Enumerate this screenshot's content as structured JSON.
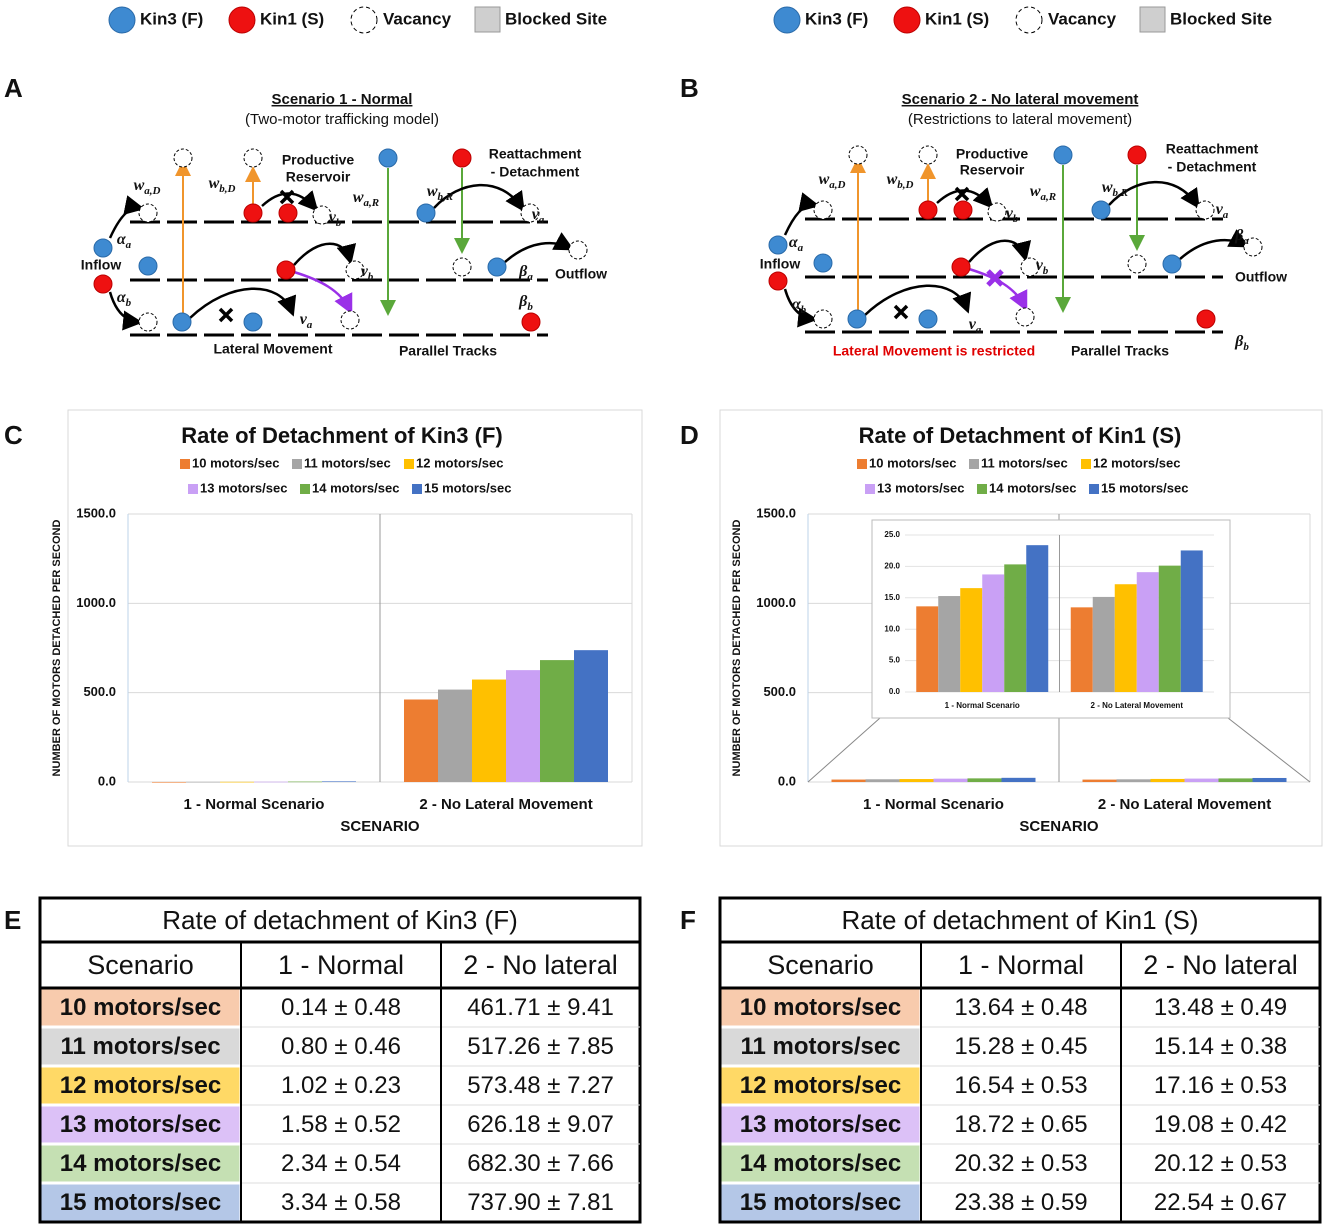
{
  "legend": {
    "items": [
      "Kin3 (F)",
      "Kin1 (S)",
      "Vacancy",
      "Blocked Site"
    ]
  },
  "panels": [
    "A",
    "B",
    "C",
    "D",
    "E",
    "F"
  ],
  "diagrams": [
    {
      "title": "Scenario 1 - Normal",
      "subtitle": "(Two-motor trafficking model)",
      "labels": [
        {
          "text": "w",
          "sub": "a,D"
        },
        {
          "text": "w",
          "sub": "b,D"
        },
        "Productive",
        "Reservoir",
        {
          "text": "v",
          "sub": "b"
        },
        {
          "text": "w",
          "sub": "a,R"
        },
        {
          "text": "w",
          "sub": "b,R"
        },
        "Reattachment",
        "- Detachment",
        {
          "text": "v",
          "sub": "a"
        },
        {
          "text": "α",
          "sub": "a"
        },
        "Inflow",
        {
          "text": "v",
          "sub": "b"
        },
        {
          "text": "β",
          "sub": "a"
        },
        "Outflow",
        {
          "text": "α",
          "sub": "b"
        },
        {
          "text": "β",
          "sub": "b"
        },
        {
          "text": "v",
          "sub": "a"
        },
        "Lateral Movement",
        "Parallel Tracks"
      ]
    },
    {
      "title": "Scenario 2 - No lateral movement",
      "subtitle": "(Restrictions to lateral movement)",
      "labels": [
        {
          "text": "w",
          "sub": "a,D"
        },
        {
          "text": "w",
          "sub": "b,D"
        },
        "Productive",
        "Reservoir",
        {
          "text": "v",
          "sub": "b"
        },
        {
          "text": "w",
          "sub": "a,R"
        },
        {
          "text": "w",
          "sub": "b,R"
        },
        "Reattachment",
        "- Detachment",
        {
          "text": "v",
          "sub": "a"
        },
        {
          "text": "α",
          "sub": "a"
        },
        "Inflow",
        {
          "text": "v",
          "sub": "b"
        },
        {
          "text": "β",
          "sub": "a"
        },
        "Outflow",
        {
          "text": "α",
          "sub": "b"
        },
        {
          "text": "β",
          "sub": "b"
        },
        {
          "text": "v",
          "sub": "a"
        },
        "Lateral Movement is restricted",
        "Parallel Tracks"
      ]
    }
  ],
  "chart_data": [
    {
      "type": "bar",
      "title": "Rate of Detachment of Kin3 (F)",
      "ylabel": "NUMBER OF MOTORS DETACHED PER SECOND",
      "xlabel": "SCENARIO",
      "categories": [
        "1 - Normal Scenario",
        "2 - No Lateral Movement"
      ],
      "series": [
        {
          "name": "10 motors/sec",
          "color": "#ed7d31",
          "values": [
            0.14,
            461.71
          ]
        },
        {
          "name": "11 motors/sec",
          "color": "#a5a5a5",
          "values": [
            0.8,
            517.26
          ]
        },
        {
          "name": "12 motors/sec",
          "color": "#ffc000",
          "values": [
            1.02,
            573.48
          ]
        },
        {
          "name": "13 motors/sec",
          "color": "#c9a0f5",
          "values": [
            1.58,
            626.18
          ]
        },
        {
          "name": "14 motors/sec",
          "color": "#70ad47",
          "values": [
            2.34,
            682.3
          ]
        },
        {
          "name": "15 motors/sec",
          "color": "#4472c4",
          "values": [
            3.34,
            737.9
          ]
        }
      ],
      "ylim": [
        0,
        1500
      ],
      "yticks": [
        {
          "value": 0,
          "label": "0.0"
        },
        {
          "value": 500,
          "label": "500.0"
        },
        {
          "value": 1000,
          "label": "1000.0"
        },
        {
          "value": 1500,
          "label": "1500.0"
        }
      ],
      "grid": true
    },
    {
      "type": "bar",
      "title": "Rate of Detachment of Kin1 (S)",
      "ylabel": "NUMBER OF MOTORS DETACHED PER SECOND",
      "xlabel": "SCENARIO",
      "categories": [
        "1 - Normal Scenario",
        "2 - No Lateral Movement"
      ],
      "series": [
        {
          "name": "10 motors/sec",
          "color": "#ed7d31",
          "values": [
            13.64,
            13.48
          ]
        },
        {
          "name": "11 motors/sec",
          "color": "#a5a5a5",
          "values": [
            15.28,
            15.14
          ]
        },
        {
          "name": "12 motors/sec",
          "color": "#ffc000",
          "values": [
            16.54,
            17.16
          ]
        },
        {
          "name": "13 motors/sec",
          "color": "#c9a0f5",
          "values": [
            18.72,
            19.08
          ]
        },
        {
          "name": "14 motors/sec",
          "color": "#70ad47",
          "values": [
            20.32,
            20.12
          ]
        },
        {
          "name": "15 motors/sec",
          "color": "#4472c4",
          "values": [
            23.38,
            22.54
          ]
        }
      ],
      "ylim": [
        0,
        1500
      ],
      "yticks": [
        {
          "value": 0,
          "label": "0.0"
        },
        {
          "value": 500,
          "label": "500.0"
        },
        {
          "value": 1000,
          "label": "1000.0"
        },
        {
          "value": 1500,
          "label": "1500.0"
        }
      ],
      "grid": true,
      "inset": {
        "ylim": [
          0,
          25
        ],
        "yticks": [
          {
            "value": 0,
            "label": "0.0"
          },
          {
            "value": 5,
            "label": "5.0"
          },
          {
            "value": 10,
            "label": "10.0"
          },
          {
            "value": 15,
            "label": "15.0"
          },
          {
            "value": 20,
            "label": "20.0"
          },
          {
            "value": 25,
            "label": "25.0"
          }
        ]
      }
    }
  ],
  "tables": [
    {
      "title": "Rate of detachment of Kin3 (F)",
      "header": [
        "Scenario",
        "1 - Normal",
        "2 - No lateral"
      ],
      "rows": [
        [
          "10 motors/sec",
          "0.14 ± 0.48",
          "461.71 ± 9.41"
        ],
        [
          "11 motors/sec",
          "0.80 ± 0.46",
          "517.26 ± 7.85"
        ],
        [
          "12 motors/sec",
          "1.02 ± 0.23",
          "573.48 ± 7.27"
        ],
        [
          "13 motors/sec",
          "1.58 ± 0.52",
          "626.18 ± 9.07"
        ],
        [
          "14 motors/sec",
          "2.34 ± 0.54",
          "682.30 ± 7.66"
        ],
        [
          "15 motors/sec",
          "3.34 ± 0.58",
          "737.90 ± 7.81"
        ]
      ],
      "row_colors": [
        "#f8cbad",
        "#d9d9d9",
        "#ffd966",
        "#dcc1f7",
        "#c5e0b3",
        "#b4c7e7"
      ]
    },
    {
      "title": "Rate of detachment of Kin1 (S)",
      "header": [
        "Scenario",
        "1 - Normal",
        "2 - No lateral"
      ],
      "rows": [
        [
          "10 motors/sec",
          "13.64 ± 0.48",
          "13.48 ± 0.49"
        ],
        [
          "11 motors/sec",
          "15.28 ± 0.45",
          "15.14 ± 0.38"
        ],
        [
          "12 motors/sec",
          "16.54 ± 0.53",
          "17.16 ± 0.53"
        ],
        [
          "13 motors/sec",
          "18.72 ± 0.65",
          "19.08 ± 0.42"
        ],
        [
          "14 motors/sec",
          "20.32 ± 0.53",
          "20.12 ± 0.53"
        ],
        [
          "15 motors/sec",
          "23.38 ± 0.59",
          "22.54 ± 0.67"
        ]
      ],
      "row_colors": [
        "#f8cbad",
        "#d9d9d9",
        "#ffd966",
        "#dcc1f7",
        "#c5e0b3",
        "#b4c7e7"
      ]
    }
  ]
}
